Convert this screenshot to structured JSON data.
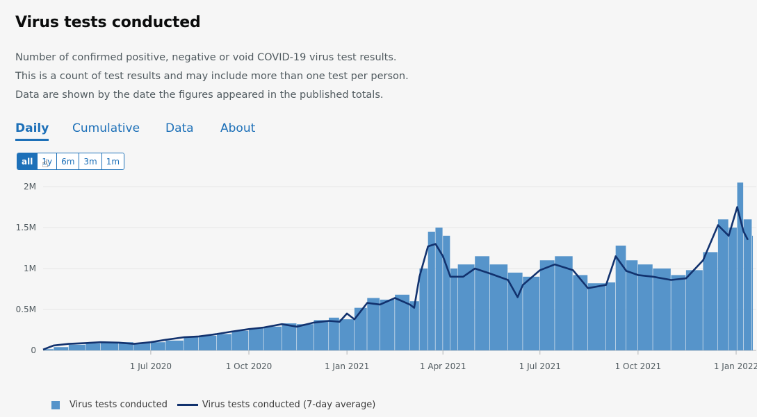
{
  "title": "Virus tests conducted",
  "description": [
    "Number of confirmed positive, negative or void COVID-19 virus test results.",
    "This is a count of test results and may include more than one test per person.",
    "Data are shown by the date the figures appeared in the published totals."
  ],
  "tabs": [
    {
      "label": "Daily",
      "active": true
    },
    {
      "label": "Cumulative",
      "active": false
    },
    {
      "label": "Data",
      "active": false
    },
    {
      "label": "About",
      "active": false
    }
  ],
  "range_buttons": [
    {
      "label": "all",
      "active": true
    },
    {
      "label": "1y",
      "active": false
    },
    {
      "label": "6m",
      "active": false
    },
    {
      "label": "3m",
      "active": false
    },
    {
      "label": "1m",
      "active": false
    }
  ],
  "colors": {
    "accent": "#1d70b8",
    "bar": "#5694ca",
    "line": "#12326e",
    "grid": "#e6e6e6"
  },
  "chart_data": {
    "type": "bar",
    "x_axis": "date",
    "x_range": [
      "2020-03-22",
      "2022-01-16"
    ],
    "ylim": [
      0,
      2000000
    ],
    "y_ticks": [
      0,
      500000,
      1000000,
      1500000,
      2000000
    ],
    "y_tick_labels": [
      "0",
      "0.5M",
      "1M",
      "1.5M",
      "2M"
    ],
    "x_ticks": [
      "2020-07-01",
      "2020-10-01",
      "2021-01-01",
      "2021-04-01",
      "2021-07-01",
      "2021-10-01",
      "2022-01-01"
    ],
    "x_tick_labels": [
      "1 Jul 2020",
      "1 Oct 2020",
      "1 Jan 2021",
      "1 Apr 2021",
      "1 Jul 2021",
      "1 Oct 2021",
      "1 Jan 2022"
    ],
    "grid": true,
    "legend_position": "bottom-left",
    "series": [
      {
        "name": "Virus tests conducted",
        "kind": "bar",
        "values": [
          [
            "2020-03-22",
            15000
          ],
          [
            "2020-04-01",
            40000
          ],
          [
            "2020-04-15",
            70000
          ],
          [
            "2020-05-01",
            85000
          ],
          [
            "2020-05-15",
            95000
          ],
          [
            "2020-06-01",
            100000
          ],
          [
            "2020-06-15",
            90000
          ],
          [
            "2020-07-01",
            100000
          ],
          [
            "2020-07-15",
            120000
          ],
          [
            "2020-08-01",
            170000
          ],
          [
            "2020-08-15",
            180000
          ],
          [
            "2020-09-01",
            200000
          ],
          [
            "2020-09-15",
            240000
          ],
          [
            "2020-10-01",
            270000
          ],
          [
            "2020-10-15",
            290000
          ],
          [
            "2020-11-01",
            330000
          ],
          [
            "2020-11-15",
            320000
          ],
          [
            "2020-12-01",
            370000
          ],
          [
            "2020-12-15",
            400000
          ],
          [
            "2020-12-25",
            380000
          ],
          [
            "2021-01-08",
            520000
          ],
          [
            "2021-01-20",
            640000
          ],
          [
            "2021-02-01",
            620000
          ],
          [
            "2021-02-15",
            680000
          ],
          [
            "2021-03-01",
            600000
          ],
          [
            "2021-03-10",
            1000000
          ],
          [
            "2021-03-18",
            1450000
          ],
          [
            "2021-03-25",
            1500000
          ],
          [
            "2021-04-01",
            1400000
          ],
          [
            "2021-04-08",
            1000000
          ],
          [
            "2021-04-15",
            1050000
          ],
          [
            "2021-05-01",
            1150000
          ],
          [
            "2021-05-15",
            1050000
          ],
          [
            "2021-06-01",
            950000
          ],
          [
            "2021-06-15",
            900000
          ],
          [
            "2021-07-01",
            1100000
          ],
          [
            "2021-07-15",
            1150000
          ],
          [
            "2021-08-01",
            920000
          ],
          [
            "2021-08-15",
            820000
          ],
          [
            "2021-09-01",
            830000
          ],
          [
            "2021-09-10",
            1280000
          ],
          [
            "2021-09-20",
            1100000
          ],
          [
            "2021-10-01",
            1050000
          ],
          [
            "2021-10-15",
            1000000
          ],
          [
            "2021-11-01",
            920000
          ],
          [
            "2021-11-15",
            980000
          ],
          [
            "2021-12-01",
            1200000
          ],
          [
            "2021-12-15",
            1600000
          ],
          [
            "2021-12-25",
            1500000
          ],
          [
            "2022-01-02",
            2050000
          ],
          [
            "2022-01-08",
            1600000
          ],
          [
            "2022-01-16",
            1400000
          ]
        ]
      },
      {
        "name": "Virus tests conducted (7-day average)",
        "kind": "line",
        "values": [
          [
            "2020-03-22",
            10000
          ],
          [
            "2020-04-01",
            60000
          ],
          [
            "2020-04-15",
            80000
          ],
          [
            "2020-05-01",
            90000
          ],
          [
            "2020-05-15",
            100000
          ],
          [
            "2020-06-01",
            95000
          ],
          [
            "2020-06-15",
            80000
          ],
          [
            "2020-07-01",
            100000
          ],
          [
            "2020-07-15",
            130000
          ],
          [
            "2020-08-01",
            160000
          ],
          [
            "2020-08-15",
            170000
          ],
          [
            "2020-09-01",
            200000
          ],
          [
            "2020-09-15",
            230000
          ],
          [
            "2020-10-01",
            260000
          ],
          [
            "2020-10-15",
            280000
          ],
          [
            "2020-11-01",
            320000
          ],
          [
            "2020-11-15",
            290000
          ],
          [
            "2020-12-01",
            340000
          ],
          [
            "2020-12-15",
            360000
          ],
          [
            "2020-12-25",
            350000
          ],
          [
            "2021-01-01",
            450000
          ],
          [
            "2021-01-08",
            380000
          ],
          [
            "2021-01-20",
            580000
          ],
          [
            "2021-02-01",
            560000
          ],
          [
            "2021-02-15",
            640000
          ],
          [
            "2021-03-01",
            560000
          ],
          [
            "2021-03-05",
            520000
          ],
          [
            "2021-03-10",
            900000
          ],
          [
            "2021-03-18",
            1270000
          ],
          [
            "2021-03-25",
            1300000
          ],
          [
            "2021-04-01",
            1150000
          ],
          [
            "2021-04-08",
            900000
          ],
          [
            "2021-04-20",
            900000
          ],
          [
            "2021-05-01",
            1000000
          ],
          [
            "2021-05-15",
            940000
          ],
          [
            "2021-06-01",
            860000
          ],
          [
            "2021-06-10",
            650000
          ],
          [
            "2021-06-15",
            800000
          ],
          [
            "2021-07-01",
            980000
          ],
          [
            "2021-07-15",
            1050000
          ],
          [
            "2021-08-01",
            980000
          ],
          [
            "2021-08-15",
            760000
          ],
          [
            "2021-09-01",
            800000
          ],
          [
            "2021-09-10",
            1150000
          ],
          [
            "2021-09-20",
            970000
          ],
          [
            "2021-10-01",
            920000
          ],
          [
            "2021-10-15",
            900000
          ],
          [
            "2021-11-01",
            860000
          ],
          [
            "2021-11-15",
            880000
          ],
          [
            "2021-12-01",
            1100000
          ],
          [
            "2021-12-15",
            1530000
          ],
          [
            "2021-12-25",
            1400000
          ],
          [
            "2022-01-02",
            1750000
          ],
          [
            "2022-01-08",
            1450000
          ],
          [
            "2022-01-12",
            1350000
          ]
        ]
      }
    ]
  }
}
